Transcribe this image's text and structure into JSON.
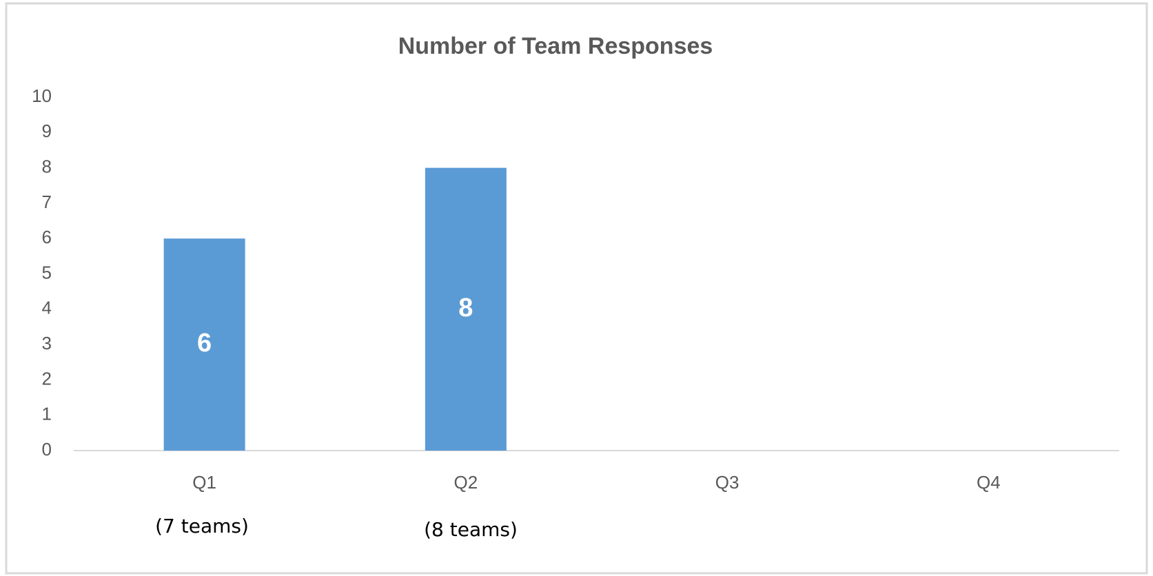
{
  "chart_data": {
    "type": "bar",
    "title": "Number of Team Responses",
    "categories": [
      "Q1",
      "Q2",
      "Q3",
      "Q4"
    ],
    "values": [
      6,
      8,
      null,
      null
    ],
    "color": "#5b9bd5",
    "ylim": [
      0,
      10
    ],
    "yticks": [
      0,
      1,
      2,
      3,
      4,
      5,
      6,
      7,
      8,
      9,
      10
    ],
    "grid": false,
    "annotations": [
      "(7 teams)",
      "(8 teams)"
    ]
  }
}
